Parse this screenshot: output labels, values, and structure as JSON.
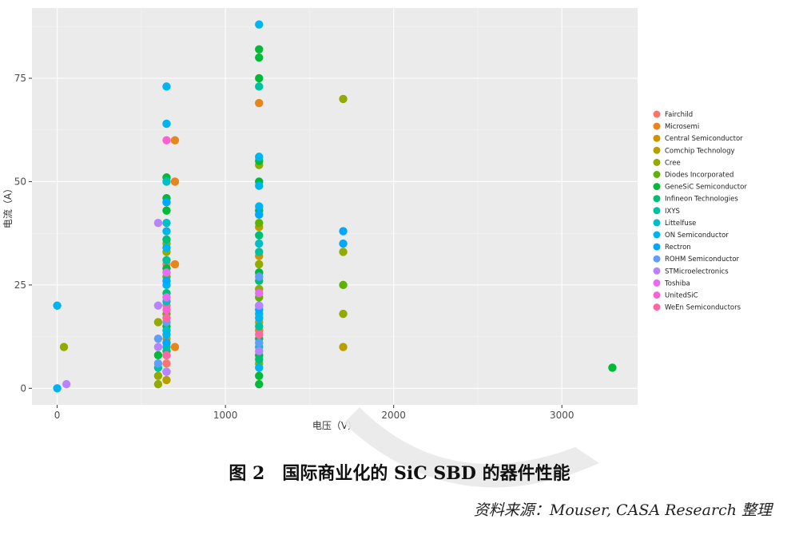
{
  "chart_data": {
    "type": "scatter",
    "xlabel": "电压（V）",
    "ylabel": "电流（A）",
    "xlim": [
      -150,
      3450
    ],
    "ylim": [
      -4,
      92
    ],
    "xticks": [
      0,
      1000,
      2000,
      3000
    ],
    "yticks": [
      0,
      25,
      50,
      75
    ],
    "grid": true,
    "legend_position": "right",
    "series": [
      {
        "name": "Fairchild",
        "color": "#F8766D",
        "points": [
          [
            650,
            6
          ],
          [
            650,
            20
          ],
          [
            650,
            30
          ]
        ]
      },
      {
        "name": "Microsemi",
        "color": "#E7861B",
        "points": [
          [
            700,
            60
          ],
          [
            700,
            50
          ],
          [
            700,
            30
          ],
          [
            700,
            10
          ],
          [
            1200,
            69
          ],
          [
            1200,
            14
          ]
        ]
      },
      {
        "name": "Central Semiconductor",
        "color": "#D39200",
        "points": [
          [
            650,
            12
          ],
          [
            1200,
            32
          ],
          [
            1200,
            16
          ]
        ]
      },
      {
        "name": "Comchip Technology",
        "color": "#B79F00",
        "points": [
          [
            650,
            2
          ],
          [
            650,
            8
          ],
          [
            1200,
            39
          ],
          [
            1200,
            24
          ],
          [
            1700,
            10
          ]
        ]
      },
      {
        "name": "Cree",
        "color": "#93AA00",
        "points": [
          [
            40,
            10
          ],
          [
            600,
            16
          ],
          [
            600,
            1
          ],
          [
            600,
            3
          ],
          [
            650,
            35
          ],
          [
            650,
            33
          ],
          [
            650,
            4
          ],
          [
            1200,
            54
          ],
          [
            1200,
            30
          ],
          [
            1200,
            24
          ],
          [
            1200,
            6
          ],
          [
            1700,
            70
          ],
          [
            1700,
            33
          ],
          [
            1700,
            18
          ]
        ]
      },
      {
        "name": "Diodes Incorporated",
        "color": "#5EB300",
        "points": [
          [
            650,
            18
          ],
          [
            650,
            27
          ],
          [
            1200,
            40
          ],
          [
            1200,
            22
          ],
          [
            1700,
            25
          ]
        ]
      },
      {
        "name": "GeneSiC Semiconductor",
        "color": "#00BA38",
        "points": [
          [
            600,
            8
          ],
          [
            650,
            51
          ],
          [
            650,
            46
          ],
          [
            650,
            43
          ],
          [
            650,
            29
          ],
          [
            650,
            15
          ],
          [
            1200,
            82
          ],
          [
            1200,
            80
          ],
          [
            1200,
            75
          ],
          [
            1200,
            55
          ],
          [
            1200,
            50
          ],
          [
            1200,
            43
          ],
          [
            1200,
            28
          ],
          [
            1200,
            12
          ],
          [
            1200,
            8
          ],
          [
            1200,
            3
          ],
          [
            1200,
            1
          ],
          [
            3300,
            5
          ]
        ]
      },
      {
        "name": "Infineon Technologies",
        "color": "#00BF74",
        "points": [
          [
            650,
            36
          ],
          [
            650,
            23
          ],
          [
            650,
            9
          ],
          [
            1200,
            37
          ],
          [
            1200,
            26
          ],
          [
            1200,
            20
          ],
          [
            1200,
            7
          ]
        ]
      },
      {
        "name": "IXYS",
        "color": "#00C19F",
        "points": [
          [
            600,
            5
          ],
          [
            650,
            10
          ],
          [
            650,
            31
          ],
          [
            1200,
            73
          ],
          [
            1200,
            33
          ],
          [
            1200,
            15
          ]
        ]
      },
      {
        "name": "Littelfuse",
        "color": "#00BFC4",
        "points": [
          [
            650,
            14
          ],
          [
            650,
            50
          ],
          [
            650,
            40
          ],
          [
            650,
            21
          ],
          [
            1200,
            35
          ],
          [
            1200,
            18
          ],
          [
            1200,
            10
          ]
        ]
      },
      {
        "name": "ON Semiconductor",
        "color": "#00B4F0",
        "points": [
          [
            0,
            20
          ],
          [
            0,
            0
          ],
          [
            650,
            73
          ],
          [
            650,
            64
          ],
          [
            650,
            38
          ],
          [
            650,
            34
          ],
          [
            650,
            25
          ],
          [
            650,
            13
          ],
          [
            1200,
            88
          ],
          [
            1200,
            56
          ],
          [
            1200,
            49
          ],
          [
            1200,
            44
          ],
          [
            1200,
            17
          ],
          [
            1200,
            5
          ]
        ]
      },
      {
        "name": "Rectron",
        "color": "#00A9FF",
        "points": [
          [
            650,
            45
          ],
          [
            650,
            26
          ],
          [
            650,
            11
          ],
          [
            1200,
            42
          ],
          [
            1200,
            19
          ],
          [
            1700,
            38
          ],
          [
            1700,
            35
          ]
        ]
      },
      {
        "name": "ROHM Semiconductor",
        "color": "#619CFF",
        "points": [
          [
            600,
            12
          ],
          [
            600,
            6
          ],
          [
            650,
            16
          ],
          [
            1200,
            27
          ],
          [
            1200,
            11
          ]
        ]
      },
      {
        "name": "STMicroelectronics",
        "color": "#B983FF",
        "points": [
          [
            55,
            1
          ],
          [
            600,
            40
          ],
          [
            600,
            20
          ],
          [
            600,
            10
          ],
          [
            650,
            4
          ],
          [
            1200,
            20
          ],
          [
            1200,
            9
          ]
        ]
      },
      {
        "name": "Toshiba",
        "color": "#E76BF3",
        "points": [
          [
            650,
            28
          ],
          [
            650,
            22
          ],
          [
            1200,
            23
          ]
        ]
      },
      {
        "name": "UnitedSiC",
        "color": "#FD61D1",
        "points": [
          [
            650,
            60
          ],
          [
            650,
            19
          ]
        ]
      },
      {
        "name": "WeEn Semiconductors",
        "color": "#FF67A4",
        "points": [
          [
            650,
            8
          ],
          [
            650,
            17
          ],
          [
            1200,
            13
          ]
        ]
      }
    ]
  },
  "caption": "图 2　国际商业化的 SiC SBD 的器件性能",
  "source": "资料来源：Mouser, CASA Research 整理",
  "colors": {
    "panel": "#EBEBEB",
    "grid_major": "#FFFFFF",
    "grid_minor": "#F4F4F4"
  }
}
